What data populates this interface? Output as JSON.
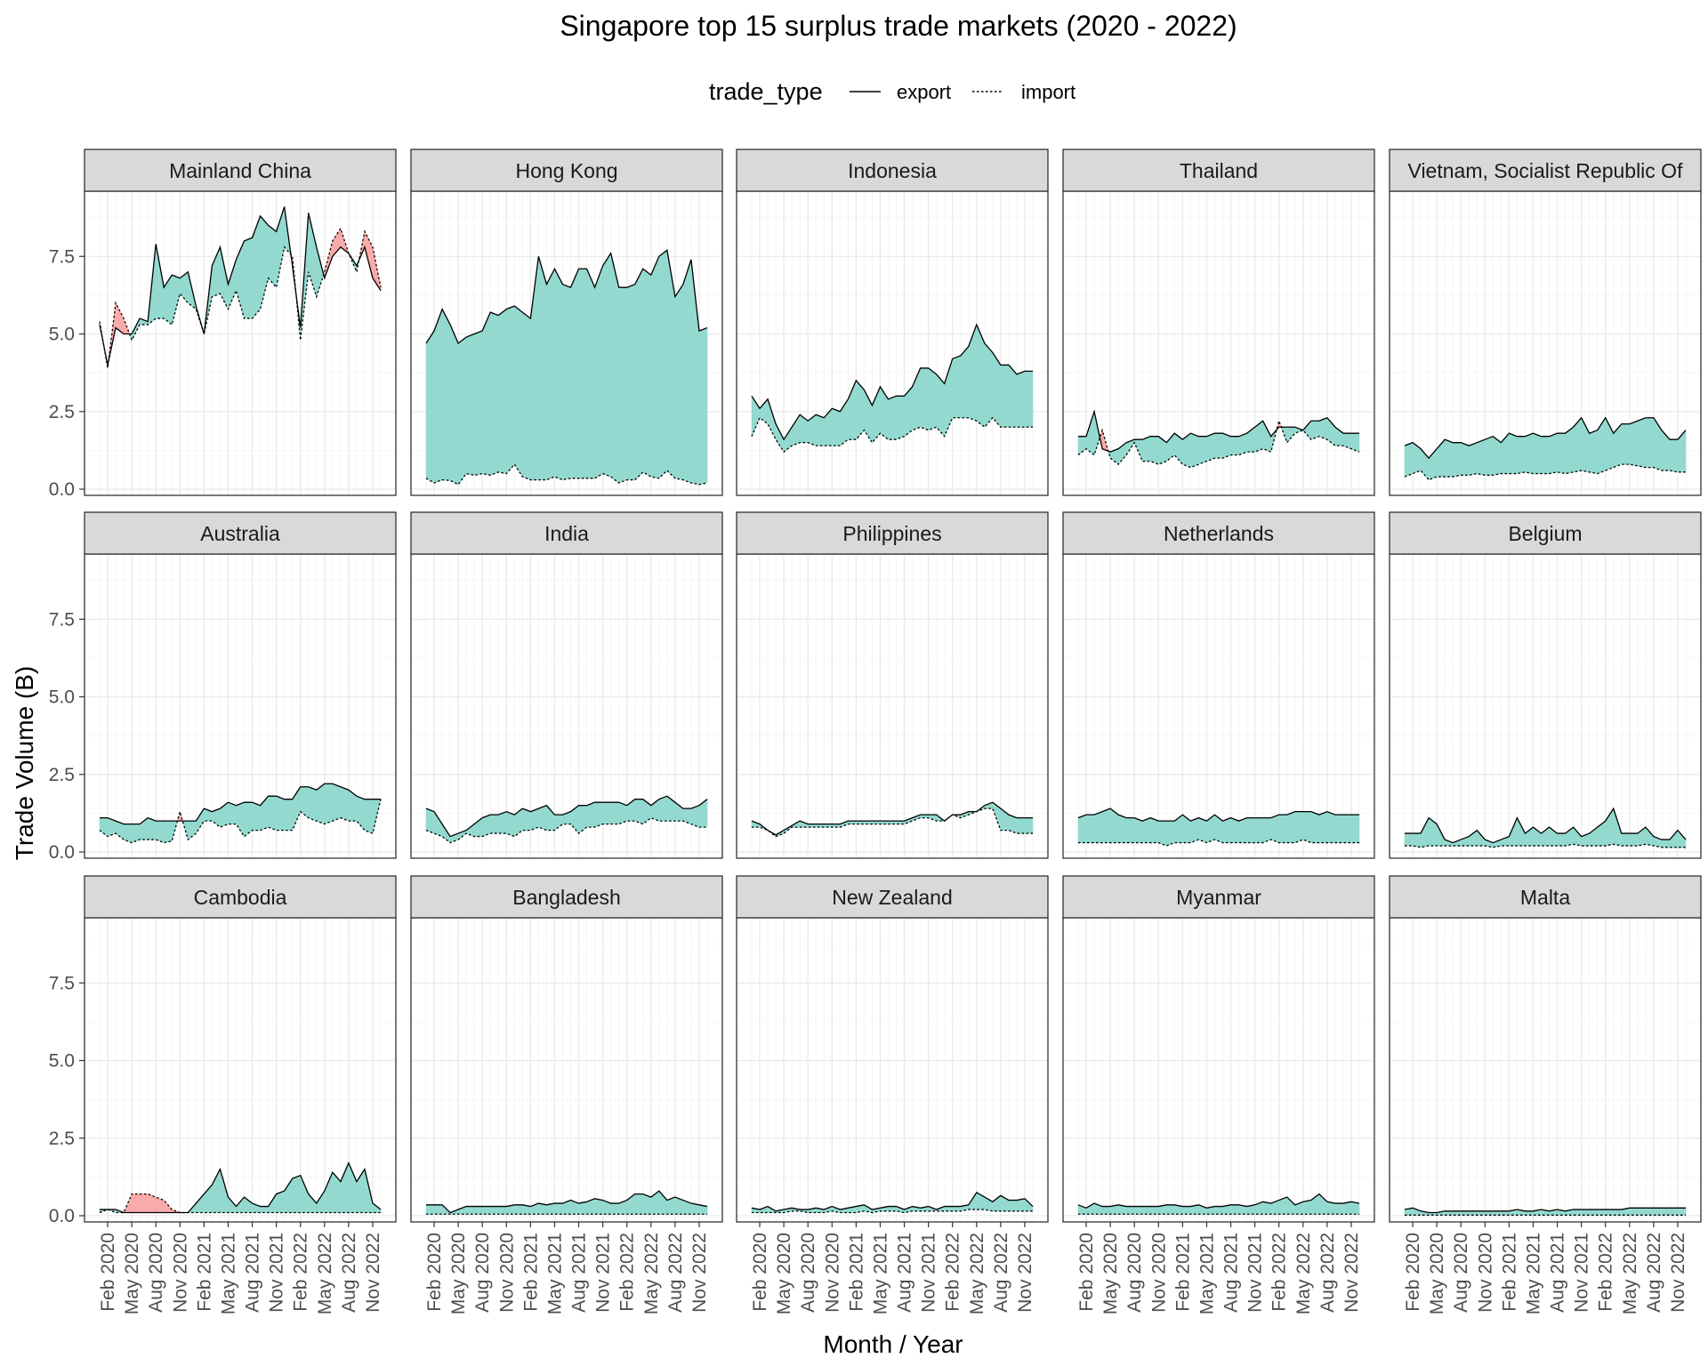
{
  "chart_data": {
    "type": "area",
    "title": "Singapore top 15 surplus trade markets (2020 - 2022)",
    "xlabel": "Month / Year",
    "ylabel": "Trade Volume (B)",
    "ylim": [
      -0.2,
      9.6
    ],
    "y_ticks": [
      0.0,
      2.5,
      5.0,
      7.5
    ],
    "y_tick_labels": [
      "0.0",
      "2.5",
      "5.0",
      "7.5"
    ],
    "x_start": "Jan 2020",
    "x_tick_labels": [
      "Feb 2020",
      "May 2020",
      "Aug 2020",
      "Nov 2020",
      "Feb 2021",
      "May 2021",
      "Aug 2021",
      "Nov 2021",
      "Feb 2022",
      "May 2022",
      "Aug 2022",
      "Nov 2022"
    ],
    "legend": {
      "title": "trade_type",
      "position": "top",
      "entries": [
        {
          "name": "export",
          "line": "solid"
        },
        {
          "name": "import",
          "line": "dotted"
        }
      ]
    },
    "fill_colors": {
      "surplus": "#93d9cf",
      "deficit": "#f9aaaa"
    },
    "layout": {
      "rows": 3,
      "cols": 5,
      "grid": true,
      "free_x_labels": "bottom row only"
    },
    "panels": [
      {
        "name": "Mainland China",
        "export": [
          5.3,
          4.0,
          5.2,
          5.0,
          5.0,
          5.5,
          5.4,
          7.9,
          6.5,
          6.9,
          6.8,
          7.0,
          5.9,
          5.0,
          7.2,
          7.8,
          6.6,
          7.4,
          8.0,
          8.1,
          8.8,
          8.5,
          8.3,
          9.1,
          7.2,
          5.2,
          8.9,
          7.8,
          6.8,
          7.5,
          7.8,
          7.6,
          7.2,
          7.8,
          6.8,
          6.4
        ],
        "import": [
          5.4,
          3.9,
          6.0,
          5.5,
          4.8,
          5.3,
          5.3,
          5.5,
          5.5,
          5.3,
          6.3,
          6.0,
          5.8,
          5.0,
          6.2,
          6.3,
          5.8,
          6.4,
          5.5,
          5.5,
          5.8,
          6.8,
          6.5,
          7.8,
          7.5,
          4.8,
          7.0,
          6.2,
          7.0,
          8.0,
          8.4,
          7.6,
          7.0,
          8.3,
          7.8,
          6.5
        ]
      },
      {
        "name": "Hong Kong",
        "export": [
          4.7,
          5.1,
          5.8,
          5.3,
          4.7,
          4.9,
          5.0,
          5.1,
          5.7,
          5.6,
          5.8,
          5.9,
          5.7,
          5.5,
          7.5,
          6.6,
          7.1,
          6.6,
          6.5,
          7.1,
          7.1,
          6.5,
          7.2,
          7.6,
          6.5,
          6.5,
          6.6,
          7.1,
          6.9,
          7.5,
          7.7,
          6.2,
          6.6,
          7.4,
          5.1,
          5.2
        ],
        "import": [
          0.35,
          0.2,
          0.3,
          0.28,
          0.15,
          0.5,
          0.45,
          0.5,
          0.45,
          0.55,
          0.5,
          0.8,
          0.4,
          0.3,
          0.3,
          0.3,
          0.4,
          0.3,
          0.35,
          0.35,
          0.35,
          0.35,
          0.5,
          0.4,
          0.2,
          0.3,
          0.3,
          0.55,
          0.4,
          0.35,
          0.6,
          0.35,
          0.3,
          0.2,
          0.15,
          0.2
        ]
      },
      {
        "name": "Indonesia",
        "export": [
          3.0,
          2.6,
          2.9,
          2.1,
          1.6,
          2.0,
          2.4,
          2.2,
          2.4,
          2.3,
          2.6,
          2.5,
          2.9,
          3.5,
          3.2,
          2.7,
          3.3,
          2.9,
          3.0,
          3.0,
          3.3,
          3.9,
          3.9,
          3.7,
          3.4,
          4.2,
          4.3,
          4.6,
          5.3,
          4.7,
          4.4,
          4.0,
          4.0,
          3.7,
          3.8,
          3.8
        ],
        "import": [
          1.7,
          2.3,
          2.1,
          1.6,
          1.2,
          1.4,
          1.5,
          1.5,
          1.4,
          1.4,
          1.4,
          1.4,
          1.6,
          1.6,
          1.9,
          1.5,
          1.8,
          1.6,
          1.6,
          1.7,
          1.9,
          2.0,
          1.9,
          2.0,
          1.7,
          2.3,
          2.3,
          2.3,
          2.2,
          2.0,
          2.3,
          2.0,
          2.0,
          2.0,
          2.0,
          2.0
        ]
      },
      {
        "name": "Thailand",
        "export": [
          1.7,
          1.7,
          2.5,
          1.3,
          1.2,
          1.3,
          1.5,
          1.6,
          1.6,
          1.7,
          1.7,
          1.5,
          1.8,
          1.6,
          1.8,
          1.7,
          1.7,
          1.8,
          1.8,
          1.7,
          1.7,
          1.8,
          2.0,
          2.2,
          1.7,
          2.0,
          2.0,
          2.0,
          1.9,
          2.2,
          2.2,
          2.3,
          2.0,
          1.8,
          1.8,
          1.8
        ],
        "import": [
          1.1,
          1.3,
          1.1,
          1.9,
          1.0,
          0.8,
          1.1,
          1.5,
          0.9,
          0.9,
          0.8,
          0.9,
          1.1,
          0.8,
          0.7,
          0.8,
          0.9,
          1.0,
          1.0,
          1.1,
          1.1,
          1.2,
          1.2,
          1.3,
          1.2,
          2.2,
          1.5,
          1.8,
          1.9,
          1.6,
          1.7,
          1.6,
          1.4,
          1.4,
          1.3,
          1.2
        ]
      },
      {
        "name": "Vietnam, Socialist Republic Of",
        "export": [
          1.4,
          1.5,
          1.3,
          1.0,
          1.3,
          1.6,
          1.5,
          1.5,
          1.4,
          1.5,
          1.6,
          1.7,
          1.5,
          1.8,
          1.7,
          1.7,
          1.8,
          1.7,
          1.7,
          1.8,
          1.8,
          2.0,
          2.3,
          1.8,
          1.9,
          2.3,
          1.8,
          2.1,
          2.1,
          2.2,
          2.3,
          2.3,
          1.9,
          1.6,
          1.6,
          1.9
        ],
        "import": [
          0.4,
          0.5,
          0.6,
          0.3,
          0.4,
          0.4,
          0.4,
          0.45,
          0.45,
          0.5,
          0.45,
          0.45,
          0.5,
          0.5,
          0.5,
          0.55,
          0.5,
          0.5,
          0.5,
          0.55,
          0.5,
          0.55,
          0.6,
          0.55,
          0.5,
          0.6,
          0.7,
          0.8,
          0.8,
          0.75,
          0.7,
          0.7,
          0.6,
          0.6,
          0.55,
          0.55
        ]
      },
      {
        "name": "Australia",
        "export": [
          1.1,
          1.1,
          1.0,
          0.9,
          0.9,
          0.9,
          1.1,
          1.0,
          1.0,
          1.0,
          1.0,
          1.0,
          1.0,
          1.4,
          1.3,
          1.4,
          1.6,
          1.5,
          1.6,
          1.6,
          1.5,
          1.8,
          1.8,
          1.7,
          1.7,
          2.1,
          2.1,
          2.0,
          2.2,
          2.2,
          2.1,
          2.0,
          1.8,
          1.7,
          1.7,
          1.7
        ],
        "import": [
          0.7,
          0.5,
          0.6,
          0.4,
          0.3,
          0.4,
          0.4,
          0.4,
          0.3,
          0.35,
          1.3,
          0.4,
          0.6,
          1.0,
          1.0,
          0.8,
          0.9,
          0.9,
          0.5,
          0.7,
          0.7,
          0.8,
          0.7,
          0.7,
          0.7,
          1.3,
          1.1,
          1.0,
          0.9,
          1.0,
          1.1,
          1.0,
          1.0,
          0.7,
          0.6,
          1.7
        ]
      },
      {
        "name": "India",
        "export": [
          1.4,
          1.3,
          0.9,
          0.5,
          0.6,
          0.7,
          0.9,
          1.1,
          1.2,
          1.2,
          1.3,
          1.2,
          1.4,
          1.3,
          1.4,
          1.5,
          1.2,
          1.2,
          1.3,
          1.5,
          1.5,
          1.6,
          1.6,
          1.6,
          1.6,
          1.5,
          1.7,
          1.7,
          1.5,
          1.7,
          1.8,
          1.6,
          1.4,
          1.4,
          1.5,
          1.7
        ],
        "import": [
          0.7,
          0.6,
          0.5,
          0.3,
          0.4,
          0.6,
          0.5,
          0.5,
          0.6,
          0.6,
          0.6,
          0.5,
          0.7,
          0.7,
          0.8,
          0.7,
          0.7,
          0.9,
          0.9,
          0.6,
          0.8,
          0.8,
          0.9,
          0.9,
          0.9,
          1.0,
          1.0,
          0.9,
          1.1,
          1.0,
          1.0,
          1.0,
          1.0,
          0.9,
          0.8,
          0.8
        ]
      },
      {
        "name": "Philippines",
        "export": [
          1.0,
          0.9,
          0.7,
          0.55,
          0.7,
          0.85,
          1.0,
          0.9,
          0.9,
          0.9,
          0.9,
          0.9,
          1.0,
          1.0,
          1.0,
          1.0,
          1.0,
          1.0,
          1.0,
          1.0,
          1.1,
          1.2,
          1.2,
          1.2,
          1.0,
          1.2,
          1.2,
          1.3,
          1.3,
          1.5,
          1.6,
          1.4,
          1.2,
          1.1,
          1.1,
          1.1
        ],
        "import": [
          0.8,
          0.8,
          0.7,
          0.5,
          0.6,
          0.8,
          0.8,
          0.8,
          0.8,
          0.8,
          0.8,
          0.8,
          0.9,
          0.9,
          0.9,
          0.9,
          0.9,
          0.9,
          0.9,
          0.9,
          1.0,
          1.1,
          1.1,
          1.0,
          1.0,
          1.2,
          1.1,
          1.2,
          1.3,
          1.4,
          1.4,
          0.7,
          0.7,
          0.6,
          0.6,
          0.6
        ]
      },
      {
        "name": "Netherlands",
        "export": [
          1.1,
          1.2,
          1.2,
          1.3,
          1.4,
          1.2,
          1.1,
          1.1,
          1.0,
          1.1,
          1.0,
          1.0,
          1.0,
          1.2,
          1.0,
          1.1,
          1.0,
          1.2,
          1.0,
          1.1,
          1.0,
          1.1,
          1.1,
          1.1,
          1.1,
          1.2,
          1.2,
          1.3,
          1.3,
          1.3,
          1.2,
          1.3,
          1.2,
          1.2,
          1.2,
          1.2
        ],
        "import": [
          0.3,
          0.3,
          0.3,
          0.3,
          0.3,
          0.3,
          0.3,
          0.3,
          0.3,
          0.3,
          0.3,
          0.2,
          0.3,
          0.3,
          0.3,
          0.4,
          0.3,
          0.4,
          0.3,
          0.3,
          0.3,
          0.3,
          0.3,
          0.3,
          0.4,
          0.3,
          0.3,
          0.3,
          0.4,
          0.3,
          0.3,
          0.3,
          0.3,
          0.3,
          0.3,
          0.3
        ]
      },
      {
        "name": "Belgium",
        "export": [
          0.6,
          0.6,
          0.6,
          1.1,
          0.9,
          0.4,
          0.3,
          0.4,
          0.5,
          0.7,
          0.4,
          0.3,
          0.4,
          0.5,
          1.1,
          0.6,
          0.8,
          0.6,
          0.8,
          0.6,
          0.6,
          0.8,
          0.5,
          0.6,
          0.8,
          1.0,
          1.4,
          0.6,
          0.6,
          0.6,
          0.8,
          0.5,
          0.4,
          0.4,
          0.7,
          0.4
        ],
        "import": [
          0.2,
          0.2,
          0.15,
          0.2,
          0.2,
          0.2,
          0.2,
          0.2,
          0.2,
          0.2,
          0.2,
          0.15,
          0.2,
          0.2,
          0.2,
          0.2,
          0.2,
          0.2,
          0.2,
          0.2,
          0.2,
          0.25,
          0.2,
          0.2,
          0.2,
          0.2,
          0.25,
          0.2,
          0.2,
          0.2,
          0.25,
          0.2,
          0.15,
          0.15,
          0.15,
          0.15
        ]
      },
      {
        "name": "Cambodia",
        "export": [
          0.2,
          0.2,
          0.2,
          0.1,
          0.1,
          0.1,
          0.1,
          0.1,
          0.1,
          0.1,
          0.1,
          0.1,
          0.4,
          0.7,
          1.0,
          1.5,
          0.6,
          0.3,
          0.6,
          0.4,
          0.3,
          0.3,
          0.7,
          0.8,
          1.2,
          1.3,
          0.7,
          0.4,
          0.8,
          1.4,
          1.1,
          1.7,
          1.1,
          1.5,
          0.4,
          0.2
        ],
        "import": [
          0.1,
          0.2,
          0.1,
          0.1,
          0.7,
          0.7,
          0.7,
          0.6,
          0.5,
          0.2,
          0.1,
          0.1,
          0.1,
          0.1,
          0.1,
          0.1,
          0.1,
          0.1,
          0.1,
          0.1,
          0.1,
          0.1,
          0.1,
          0.1,
          0.1,
          0.1,
          0.1,
          0.1,
          0.1,
          0.1,
          0.1,
          0.1,
          0.1,
          0.1,
          0.1,
          0.1
        ]
      },
      {
        "name": "Bangladesh",
        "export": [
          0.35,
          0.35,
          0.35,
          0.1,
          0.2,
          0.3,
          0.3,
          0.3,
          0.3,
          0.3,
          0.3,
          0.35,
          0.35,
          0.3,
          0.4,
          0.35,
          0.4,
          0.4,
          0.5,
          0.4,
          0.45,
          0.55,
          0.5,
          0.4,
          0.4,
          0.5,
          0.7,
          0.7,
          0.6,
          0.8,
          0.5,
          0.6,
          0.5,
          0.4,
          0.35,
          0.3
        ],
        "import": [
          0.05,
          0.05,
          0.05,
          0.05,
          0.05,
          0.05,
          0.05,
          0.05,
          0.05,
          0.05,
          0.05,
          0.05,
          0.05,
          0.05,
          0.05,
          0.05,
          0.05,
          0.05,
          0.05,
          0.05,
          0.05,
          0.05,
          0.05,
          0.05,
          0.05,
          0.05,
          0.05,
          0.05,
          0.05,
          0.05,
          0.05,
          0.05,
          0.05,
          0.05,
          0.05,
          0.05
        ]
      },
      {
        "name": "New Zealand",
        "export": [
          0.25,
          0.2,
          0.3,
          0.15,
          0.2,
          0.25,
          0.2,
          0.2,
          0.25,
          0.2,
          0.3,
          0.2,
          0.25,
          0.3,
          0.35,
          0.2,
          0.25,
          0.3,
          0.3,
          0.2,
          0.3,
          0.25,
          0.3,
          0.2,
          0.3,
          0.3,
          0.3,
          0.35,
          0.75,
          0.6,
          0.45,
          0.65,
          0.5,
          0.5,
          0.55,
          0.3
        ],
        "import": [
          0.1,
          0.1,
          0.1,
          0.1,
          0.1,
          0.15,
          0.15,
          0.1,
          0.1,
          0.1,
          0.15,
          0.1,
          0.1,
          0.1,
          0.15,
          0.1,
          0.15,
          0.15,
          0.15,
          0.1,
          0.15,
          0.15,
          0.15,
          0.15,
          0.15,
          0.15,
          0.15,
          0.2,
          0.2,
          0.2,
          0.15,
          0.15,
          0.15,
          0.15,
          0.15,
          0.15
        ]
      },
      {
        "name": "Myanmar",
        "export": [
          0.35,
          0.25,
          0.4,
          0.3,
          0.3,
          0.35,
          0.3,
          0.3,
          0.3,
          0.3,
          0.3,
          0.35,
          0.35,
          0.3,
          0.3,
          0.35,
          0.25,
          0.3,
          0.3,
          0.35,
          0.35,
          0.3,
          0.35,
          0.45,
          0.4,
          0.5,
          0.6,
          0.35,
          0.45,
          0.5,
          0.7,
          0.45,
          0.4,
          0.4,
          0.45,
          0.4
        ],
        "import": [
          0.05,
          0.05,
          0.05,
          0.05,
          0.05,
          0.05,
          0.05,
          0.05,
          0.05,
          0.05,
          0.05,
          0.05,
          0.05,
          0.05,
          0.05,
          0.05,
          0.05,
          0.05,
          0.05,
          0.05,
          0.05,
          0.05,
          0.05,
          0.05,
          0.05,
          0.05,
          0.05,
          0.05,
          0.05,
          0.05,
          0.05,
          0.05,
          0.05,
          0.05,
          0.05,
          0.05
        ]
      },
      {
        "name": "Malta",
        "export": [
          0.2,
          0.25,
          0.15,
          0.1,
          0.1,
          0.15,
          0.15,
          0.15,
          0.15,
          0.15,
          0.15,
          0.15,
          0.15,
          0.15,
          0.2,
          0.15,
          0.15,
          0.2,
          0.15,
          0.2,
          0.15,
          0.2,
          0.2,
          0.2,
          0.2,
          0.2,
          0.2,
          0.2,
          0.25,
          0.25,
          0.25,
          0.25,
          0.25,
          0.25,
          0.25,
          0.25
        ],
        "import": [
          0.02,
          0.02,
          0.02,
          0.02,
          0.02,
          0.02,
          0.02,
          0.02,
          0.02,
          0.02,
          0.02,
          0.02,
          0.02,
          0.02,
          0.02,
          0.02,
          0.02,
          0.02,
          0.02,
          0.02,
          0.02,
          0.02,
          0.02,
          0.02,
          0.02,
          0.02,
          0.02,
          0.02,
          0.02,
          0.02,
          0.02,
          0.02,
          0.02,
          0.02,
          0.02,
          0.02
        ]
      }
    ]
  }
}
